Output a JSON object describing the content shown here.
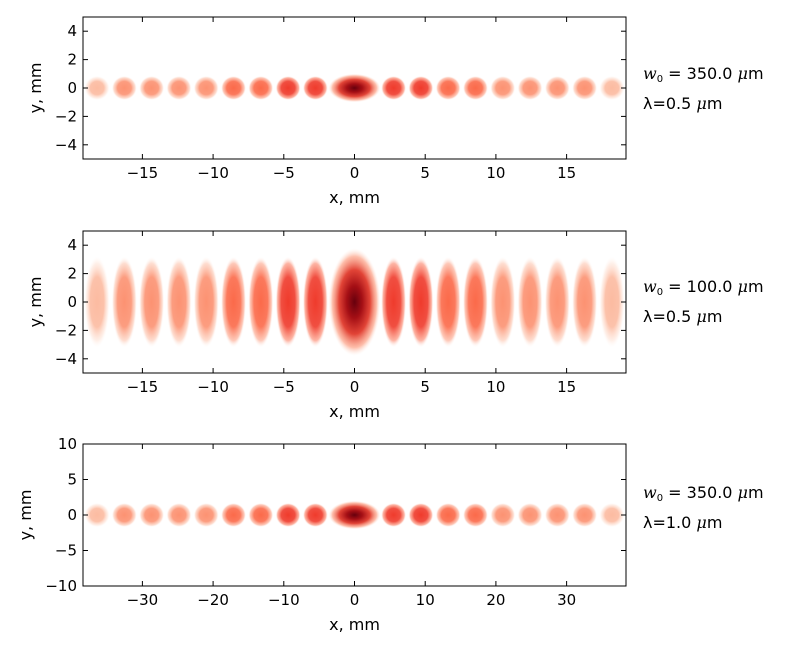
{
  "chart_data": [
    {
      "type": "heatmap",
      "title": "",
      "xlabel": "x, mm",
      "ylabel": "y, mm",
      "xlim": [
        -19.2,
        19.2
      ],
      "ylim": [
        -5,
        5
      ],
      "xticks": [
        "-15",
        "-10",
        "-5",
        "0",
        "5",
        "10",
        "15"
      ],
      "xtick_values": [
        -15,
        -10,
        -5,
        0,
        5,
        10,
        15
      ],
      "yticks": [
        "-4",
        "-2",
        "0",
        "2",
        "4"
      ],
      "ytick_values": [
        -4,
        -2,
        0,
        2,
        4
      ],
      "colormap": "Reds",
      "fringe_period_mm": 1.93,
      "central_half_width_mm": 1.8,
      "beam_half_height_mm": 0.85,
      "annotation": {
        "w0_label": "w",
        "w0_sub": "0",
        "w0_value": " = 350.0 ",
        "w0_unit": "m",
        "lambda_label": "λ=0.5 ",
        "lambda_unit": "m"
      }
    },
    {
      "type": "heatmap",
      "title": "",
      "xlabel": "x, mm",
      "ylabel": "y, mm",
      "xlim": [
        -19.2,
        19.2
      ],
      "ylim": [
        -5,
        5
      ],
      "xticks": [
        "-15",
        "-10",
        "-5",
        "0",
        "5",
        "10",
        "15"
      ],
      "xtick_values": [
        -15,
        -10,
        -5,
        0,
        5,
        10,
        15
      ],
      "yticks": [
        "-4",
        "-2",
        "0",
        "2",
        "4"
      ],
      "ytick_values": [
        -4,
        -2,
        0,
        2,
        4
      ],
      "colormap": "Reds",
      "fringe_period_mm": 1.93,
      "central_half_width_mm": 1.8,
      "beam_half_height_mm": 3.2,
      "annotation": {
        "w0_label": "w",
        "w0_sub": "0",
        "w0_value": " = 100.0 ",
        "w0_unit": "m",
        "lambda_label": "λ=0.5 ",
        "lambda_unit": "m"
      }
    },
    {
      "type": "heatmap",
      "title": "",
      "xlabel": "x, mm",
      "ylabel": "y, mm",
      "xlim": [
        -38.4,
        38.4
      ],
      "ylim": [
        -10,
        10
      ],
      "xticks": [
        "-30",
        "-20",
        "-10",
        "0",
        "10",
        "20",
        "30"
      ],
      "xtick_values": [
        -30,
        -20,
        -10,
        0,
        10,
        20,
        30
      ],
      "yticks": [
        "-10",
        "-5",
        "0",
        "5",
        "10"
      ],
      "ytick_values": [
        -10,
        -5,
        0,
        5,
        10
      ],
      "colormap": "Reds",
      "fringe_period_mm": 3.86,
      "central_half_width_mm": 3.6,
      "beam_half_height_mm": 1.7,
      "annotation": {
        "w0_label": "w",
        "w0_sub": "0",
        "w0_value": " = 350.0 ",
        "w0_unit": "m",
        "lambda_label": "λ=1.0 ",
        "lambda_unit": "m"
      }
    }
  ]
}
